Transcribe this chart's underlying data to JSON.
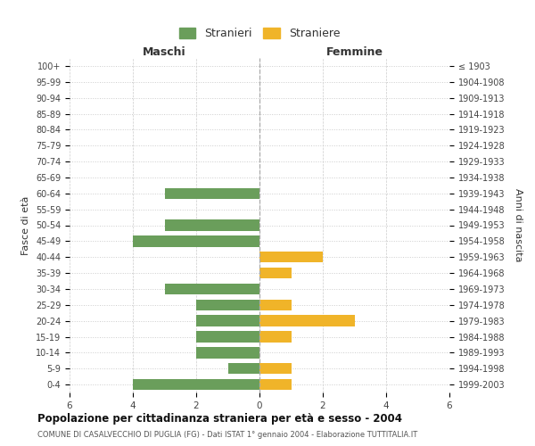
{
  "age_groups": [
    "100+",
    "95-99",
    "90-94",
    "85-89",
    "80-84",
    "75-79",
    "70-74",
    "65-69",
    "60-64",
    "55-59",
    "50-54",
    "45-49",
    "40-44",
    "35-39",
    "30-34",
    "25-29",
    "20-24",
    "15-19",
    "10-14",
    "5-9",
    "0-4"
  ],
  "birth_years": [
    "≤ 1903",
    "1904-1908",
    "1909-1913",
    "1914-1918",
    "1919-1923",
    "1924-1928",
    "1929-1933",
    "1934-1938",
    "1939-1943",
    "1944-1948",
    "1949-1953",
    "1954-1958",
    "1959-1963",
    "1964-1968",
    "1969-1973",
    "1974-1978",
    "1979-1983",
    "1984-1988",
    "1989-1993",
    "1994-1998",
    "1999-2003"
  ],
  "maschi": [
    0,
    0,
    0,
    0,
    0,
    0,
    0,
    0,
    3,
    0,
    3,
    4,
    0,
    0,
    3,
    2,
    2,
    2,
    2,
    1,
    4
  ],
  "femmine": [
    0,
    0,
    0,
    0,
    0,
    0,
    0,
    0,
    0,
    0,
    0,
    0,
    2,
    1,
    0,
    1,
    3,
    1,
    0,
    1,
    1
  ],
  "bar_color_maschi": "#6a9e5b",
  "bar_color_femmine": "#f0b429",
  "bg_color": "#ffffff",
  "grid_color": "#cccccc",
  "title": "Popolazione per cittadinanza straniera per età e sesso - 2004",
  "subtitle": "COMUNE DI CASALVECCHIO DI PUGLIA (FG) - Dati ISTAT 1° gennaio 2004 - Elaborazione TUTTITALIA.IT",
  "xlabel_left": "Maschi",
  "xlabel_right": "Femmine",
  "ylabel_left": "Fasce di età",
  "ylabel_right": "Anni di nascita",
  "legend_maschi": "Stranieri",
  "legend_femmine": "Straniere",
  "xlim": 6
}
